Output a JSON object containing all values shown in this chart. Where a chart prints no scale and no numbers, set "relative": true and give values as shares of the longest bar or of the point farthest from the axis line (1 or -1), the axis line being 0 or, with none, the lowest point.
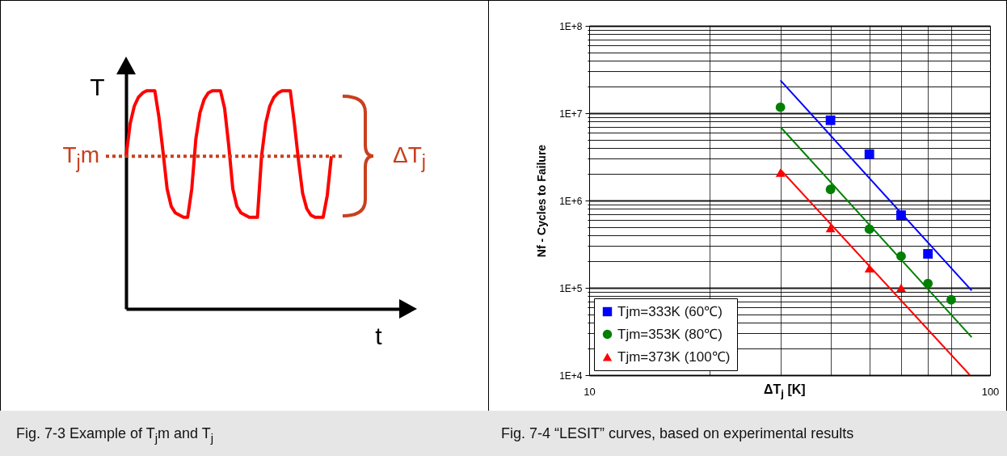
{
  "chart_data": [
    {
      "type": "line",
      "relative": true,
      "xlabel": "t",
      "ylabel": "T",
      "color": "#ff0000",
      "tick_labels": false,
      "line_style": "solid",
      "categories": [
        null,
        null,
        null,
        null,
        null,
        null,
        null,
        null,
        null,
        null,
        null,
        null,
        null,
        null,
        null,
        null,
        null,
        null,
        null,
        null,
        null,
        null,
        null,
        null,
        null,
        null,
        null,
        null,
        null,
        null,
        null,
        null,
        null,
        null,
        null,
        null,
        null,
        null,
        null,
        null,
        null,
        null,
        null,
        null,
        null,
        null,
        null,
        null,
        null,
        null,
        null
      ],
      "values": [
        0.7,
        0.85,
        0.93,
        0.97,
        0.99,
        1,
        1,
        1,
        0.88,
        0.72,
        0.55,
        0.47,
        0.44,
        0.43,
        0.42,
        0.42,
        0.55,
        0.78,
        0.9,
        0.96,
        0.99,
        1,
        1,
        1,
        0.92,
        0.75,
        0.55,
        0.47,
        0.44,
        0.43,
        0.42,
        0.42,
        0.42,
        0.7,
        0.85,
        0.93,
        0.97,
        0.99,
        1,
        1,
        1,
        0.85,
        0.68,
        0.53,
        0.46,
        0.43,
        0.42,
        0.42,
        0.42,
        0.52,
        0.7
      ],
      "ref_lines": [
        {
          "axis": "y",
          "value": 0.7,
          "label": "T$_{j}$m",
          "color": "#c8401e",
          "line_style": "dotted"
        }
      ],
      "annotations": [
        "ΔT$_{j}$",
        "Fig. 7-3 Example of T$_{j}$m and  T$_{j}$"
      ]
    },
    {
      "type": "scatter",
      "log": "xy",
      "xlabel": "ΔT$_{j}$  [K]",
      "ylabel": "Nf - Cycles to Failure",
      "grid": true,
      "legend": "bottom left",
      "xlim": [
        10,
        100
      ],
      "ylim": [
        10000,
        100000000
      ],
      "xticks": [
        10,
        {
          "value": 20,
          "label": null
        },
        {
          "value": 30,
          "label": null
        },
        {
          "value": 40,
          "label": null
        },
        {
          "value": 50,
          "label": null
        },
        {
          "value": 60,
          "label": null
        },
        {
          "value": 70,
          "label": null
        },
        {
          "value": 80,
          "label": null
        },
        100
      ],
      "yticks": [
        {
          "value": 10000,
          "label": "1E+4"
        },
        {
          "value": 20000,
          "label": null
        },
        {
          "value": 30000,
          "label": null
        },
        {
          "value": 40000,
          "label": null
        },
        {
          "value": 50000,
          "label": null
        },
        {
          "value": 60000,
          "label": null
        },
        {
          "value": 70000,
          "label": null
        },
        {
          "value": 80000,
          "label": null
        },
        {
          "value": 90000,
          "label": null
        },
        {
          "value": 100000,
          "label": "1E+5"
        },
        {
          "value": 200000,
          "label": null
        },
        {
          "value": 300000,
          "label": null
        },
        {
          "value": 400000,
          "label": null
        },
        {
          "value": 500000,
          "label": null
        },
        {
          "value": 600000,
          "label": null
        },
        {
          "value": 700000,
          "label": null
        },
        {
          "value": 800000,
          "label": null
        },
        {
          "value": 900000,
          "label": null
        },
        {
          "value": 1000000,
          "label": "1E+6"
        },
        {
          "value": 2000000,
          "label": null
        },
        {
          "value": 3000000,
          "label": null
        },
        {
          "value": 4000000,
          "label": null
        },
        {
          "value": 5000000,
          "label": null
        },
        {
          "value": 6000000,
          "label": null
        },
        {
          "value": 7000000,
          "label": null
        },
        {
          "value": 8000000,
          "label": null
        },
        {
          "value": 9000000,
          "label": null
        },
        {
          "value": 10000000,
          "label": "1E+7"
        },
        {
          "value": 20000000,
          "label": null
        },
        {
          "value": 30000000,
          "label": null
        },
        {
          "value": 40000000,
          "label": null
        },
        {
          "value": 50000000,
          "label": null
        },
        {
          "value": 60000000,
          "label": null
        },
        {
          "value": 70000000,
          "label": null
        },
        {
          "value": 80000000,
          "label": null
        },
        {
          "value": 90000000,
          "label": null
        },
        {
          "value": 100000000,
          "label": "1E+8"
        }
      ],
      "series": [
        {
          "name": "Tjm=333K  (60℃)",
          "color": "#0000ff",
          "marker": "square",
          "x": [
            40,
            50,
            60,
            70
          ],
          "values": [
            8300000,
            3400000,
            680000,
            245000
          ]
        },
        {
          "name": "Tjm=353K  (80℃)",
          "color": "#008000",
          "marker": "circle",
          "x": [
            30,
            40,
            50,
            60,
            70,
            80
          ],
          "values": [
            11700000,
            1340000,
            470000,
            230000,
            112000,
            73000
          ]
        },
        {
          "name": "Tjm=373K (100℃)",
          "color": "#ff0000",
          "marker": "triangle",
          "x": [
            30,
            40,
            50,
            60
          ],
          "values": [
            2080000,
            484000,
            167000,
            100000
          ]
        },
        {
          "type": "line",
          "color": "#0000ff",
          "x": [
            30,
            90
          ],
          "values": [
            23800000,
            93000
          ]
        },
        {
          "type": "line",
          "color": "#008000",
          "x": [
            30,
            90
          ],
          "values": [
            6960000,
            27200
          ]
        },
        {
          "type": "line",
          "color": "#ff0000",
          "x": [
            30,
            89.1
          ],
          "values": [
            2260000,
            10000
          ]
        }
      ],
      "annotations": [
        "Fig. 7-4 “LESIT” curves, based on experimental results"
      ]
    }
  ]
}
